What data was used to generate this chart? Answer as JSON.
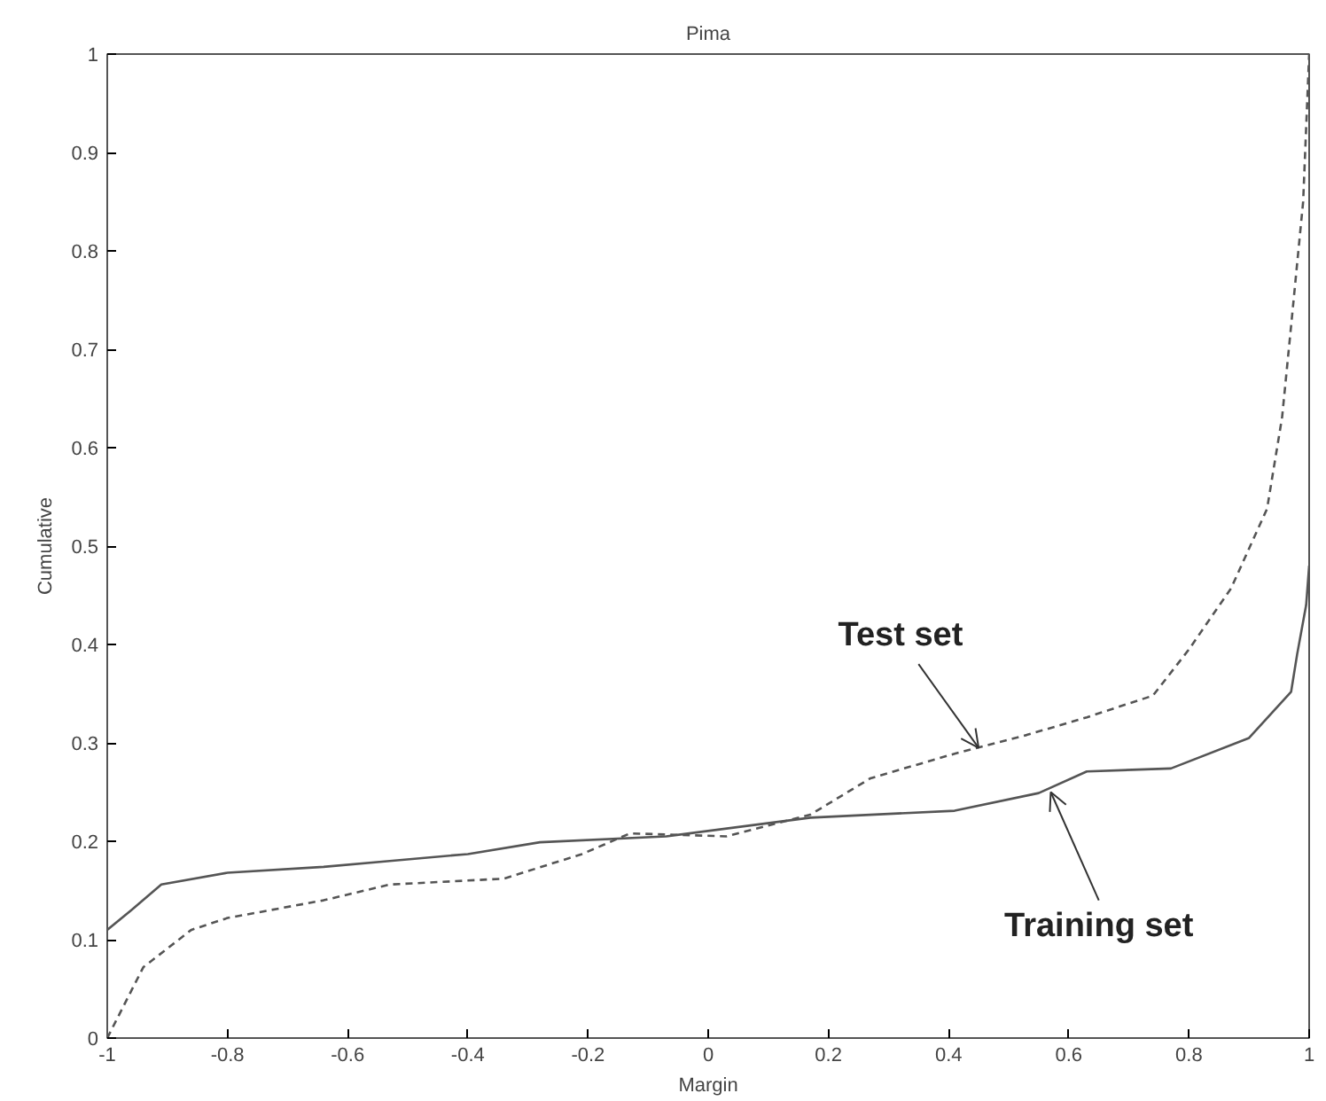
{
  "chart_data": {
    "type": "line",
    "title": "Pima",
    "xlabel": "Margin",
    "ylabel": "Cumulative",
    "xlim": [
      -1,
      1
    ],
    "ylim": [
      0,
      1
    ],
    "xticks": [
      -1,
      -0.8,
      -0.6,
      -0.4,
      -0.2,
      0,
      0.2,
      0.4,
      0.6,
      0.8,
      1
    ],
    "yticks": [
      0,
      0.1,
      0.2,
      0.3,
      0.4,
      0.5,
      0.6,
      0.7,
      0.8,
      0.9,
      1
    ],
    "grid": false,
    "series": [
      {
        "color": "#555555",
        "line_style": "solid",
        "x": [
          -1,
          -0.96,
          -0.91,
          -0.8,
          -0.64,
          -0.53,
          -0.4,
          -0.28,
          -0.07,
          0.17,
          0.41,
          0.55,
          0.63,
          0.77,
          0.9,
          0.97,
          0.98,
          0.995,
          1
        ],
        "values": [
          0.11,
          0.13,
          0.156,
          0.168,
          0.174,
          0.18,
          0.187,
          0.199,
          0.205,
          0.224,
          0.231,
          0.249,
          0.271,
          0.274,
          0.305,
          0.352,
          0.39,
          0.44,
          0.48
        ]
      },
      {
        "color": "#555555",
        "line_style": "dashed",
        "x": [
          -1,
          -0.94,
          -0.86,
          -0.8,
          -0.64,
          -0.53,
          -0.34,
          -0.21,
          -0.13,
          0.03,
          0.17,
          0.27,
          0.41,
          0.53,
          0.63,
          0.74,
          0.8,
          0.87,
          0.93,
          0.955,
          0.97,
          0.99,
          1
        ],
        "values": [
          0,
          0.072,
          0.11,
          0.122,
          0.14,
          0.156,
          0.162,
          0.187,
          0.208,
          0.205,
          0.227,
          0.264,
          0.289,
          0.308,
          0.326,
          0.348,
          0.395,
          0.457,
          0.538,
          0.631,
          0.724,
          0.85,
          1
        ]
      }
    ],
    "annotations": [
      {
        "text": "Test set",
        "x": 0.45,
        "y": 0.295
      },
      {
        "text": "Training set",
        "x": 0.57,
        "y": 0.25
      }
    ]
  }
}
